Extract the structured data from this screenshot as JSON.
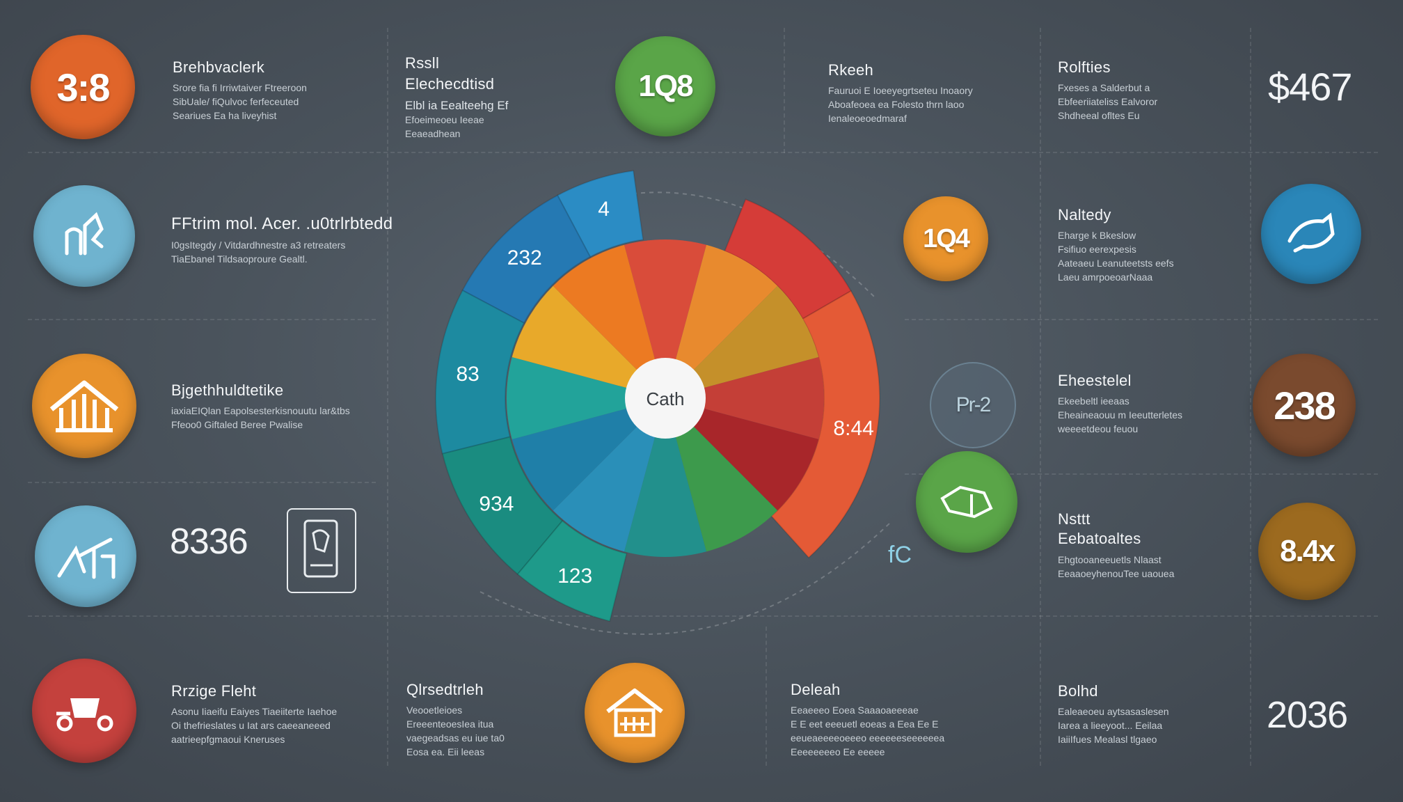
{
  "accent_colors": {
    "orange": "#e0652a",
    "amber": "#e8922c",
    "green": "#5aa548",
    "lightblue": "#6fb3cf",
    "blue": "#2a86b8",
    "red": "#c4413d",
    "brown": "#7a4a2e",
    "olive": "#9c6a1f"
  },
  "left_column": [
    {
      "circle_color": "#e0652a",
      "circle_text": "3:8",
      "title": "Brehbvaclerk",
      "body": "Srore fia fi Irriwtaiver Ftreeroon\nSibUale/ fiQulvoc ferfeceuted\nSeariues Ea ha liveyhist"
    },
    {
      "circle_color": "#6fb3cf",
      "circle_icon": "chart-icon",
      "title": "FFtrim mol. Acer. .u0trlrbtedd",
      "body": "I0gsItegdy / Vitdardhnestre a3 retreaters\nTiaEbanel Tildsaoproure Gealtl."
    },
    {
      "circle_color": "#e8922c",
      "circle_icon": "house-icon",
      "title": "Bjgethhuldtetike",
      "body": "iaxiaEIQlan Eapolsesterkisnouutu lar&tbs\nFfeoo0 Giftaled Beree Pwalise"
    },
    {
      "circle_color": "#6fb3cf",
      "circle_icon": "graph-icon",
      "big_number": "8336"
    },
    {
      "circle_color": "#c4413d",
      "circle_icon": "vehicle-icon",
      "title": "Rrzige Fleht",
      "body": "Asonu Iiaeifu Eaiyes Tiaeiiterte Iaehoe\nOi thefrieslates u Iat ars caeeaneeed\naatrieepfgmaoui Kneruses"
    }
  ],
  "top_middle": [
    {
      "title": "Rssll\nElechecdtisd",
      "sub": "Elbl ia Eealteehg Ef",
      "body": "Efoeimeoeu Ieeae\nEeaeadhean"
    },
    {
      "title": "Rkeeh",
      "body": "Fauruoi E Ioeeyegrtseteu Inoaory\nAboafeoea ea Folesto thrn laoo\nIenaleoeoedmaraf"
    }
  ],
  "green_top_circle": {
    "color": "#5aa548",
    "text": "1Q8"
  },
  "right_column": [
    {
      "title": "Rolfties",
      "body": "Fxeses a Salderbut a\nEbfeeriiateliss Ealvoror\nShdheeal ofltes Eu"
    },
    {
      "title": "Naltedy",
      "body": "Eharge k Bkeslow\nFsifiuo eerexpesis\nAateaeu Leanuteetsts eefs\nLaeu amrpoeoarNaaa"
    },
    {
      "title": "Eheestelel",
      "body": "Ekeebeltl ieeaas\nEheaineaouu m Ieeutterletes\nweeeetdeou feuou"
    },
    {
      "title": "Nsttt\nEebatoaltes",
      "body": "Ehgtooaneeuetls Nlaast\nEeaaoeyhenouTee uaouea"
    },
    {
      "title": "Bolhd",
      "body": "Ealeaeoeu aytsasaslesen\nIarea a lieeyoot... Eeilaa\nIaiiIfues Mealasl tlgaeo"
    }
  ],
  "bottom_middle": [
    {
      "title": "Qlrsedtrleh",
      "body": "Veooetleioes\nEreeenteoesIea itua\nvaegeadsas eu iue ta0\nEosa ea. Eii leeas"
    },
    {
      "title": "Deleah",
      "body": "Eeaeeeo Eoea Saaaoaeeeae\nE E eet eeeuetl eoeas a Eea Ee E\neeueaeeeeoeeeo eeeeeeseeeeeea\nEeeeeeeeo Ee eeeee"
    }
  ],
  "middle_circles": [
    {
      "color": "#e8922c",
      "text": "1Q4"
    },
    {
      "color": "#5a6a78",
      "text": "Pr-2"
    },
    {
      "color": "#5aa548",
      "icon": "hand-icon"
    },
    {
      "color": "#e8922c",
      "icon": "house-icon"
    }
  ],
  "far_right": [
    {
      "kind": "number",
      "text": "$467"
    },
    {
      "kind": "circle",
      "color": "#2a86b8",
      "icon": "arrow-icon"
    },
    {
      "kind": "circle",
      "color": "#7a4a2e",
      "text": "238"
    },
    {
      "kind": "circle",
      "color": "#9c6a1f",
      "text": "8.4x"
    },
    {
      "kind": "number",
      "text": "2036"
    }
  ],
  "small_icon_label": "fC",
  "chart_data": {
    "type": "pie",
    "center_label": "Cath",
    "outer_ring_labels": [
      "4",
      "232",
      "83",
      "934",
      "123",
      "8:44"
    ],
    "inner_slices": [
      {
        "color": "#d94c3a"
      },
      {
        "color": "#e88a2e"
      },
      {
        "color": "#c5902a"
      },
      {
        "color": "#c43f37"
      },
      {
        "color": "#a8262a"
      },
      {
        "color": "#3d9a4c"
      },
      {
        "color": "#22908c"
      },
      {
        "color": "#2a8fb8"
      },
      {
        "color": "#1f7fa8"
      },
      {
        "color": "#22a39a"
      },
      {
        "color": "#e8a92a"
      },
      {
        "color": "#ec7a22"
      }
    ]
  }
}
